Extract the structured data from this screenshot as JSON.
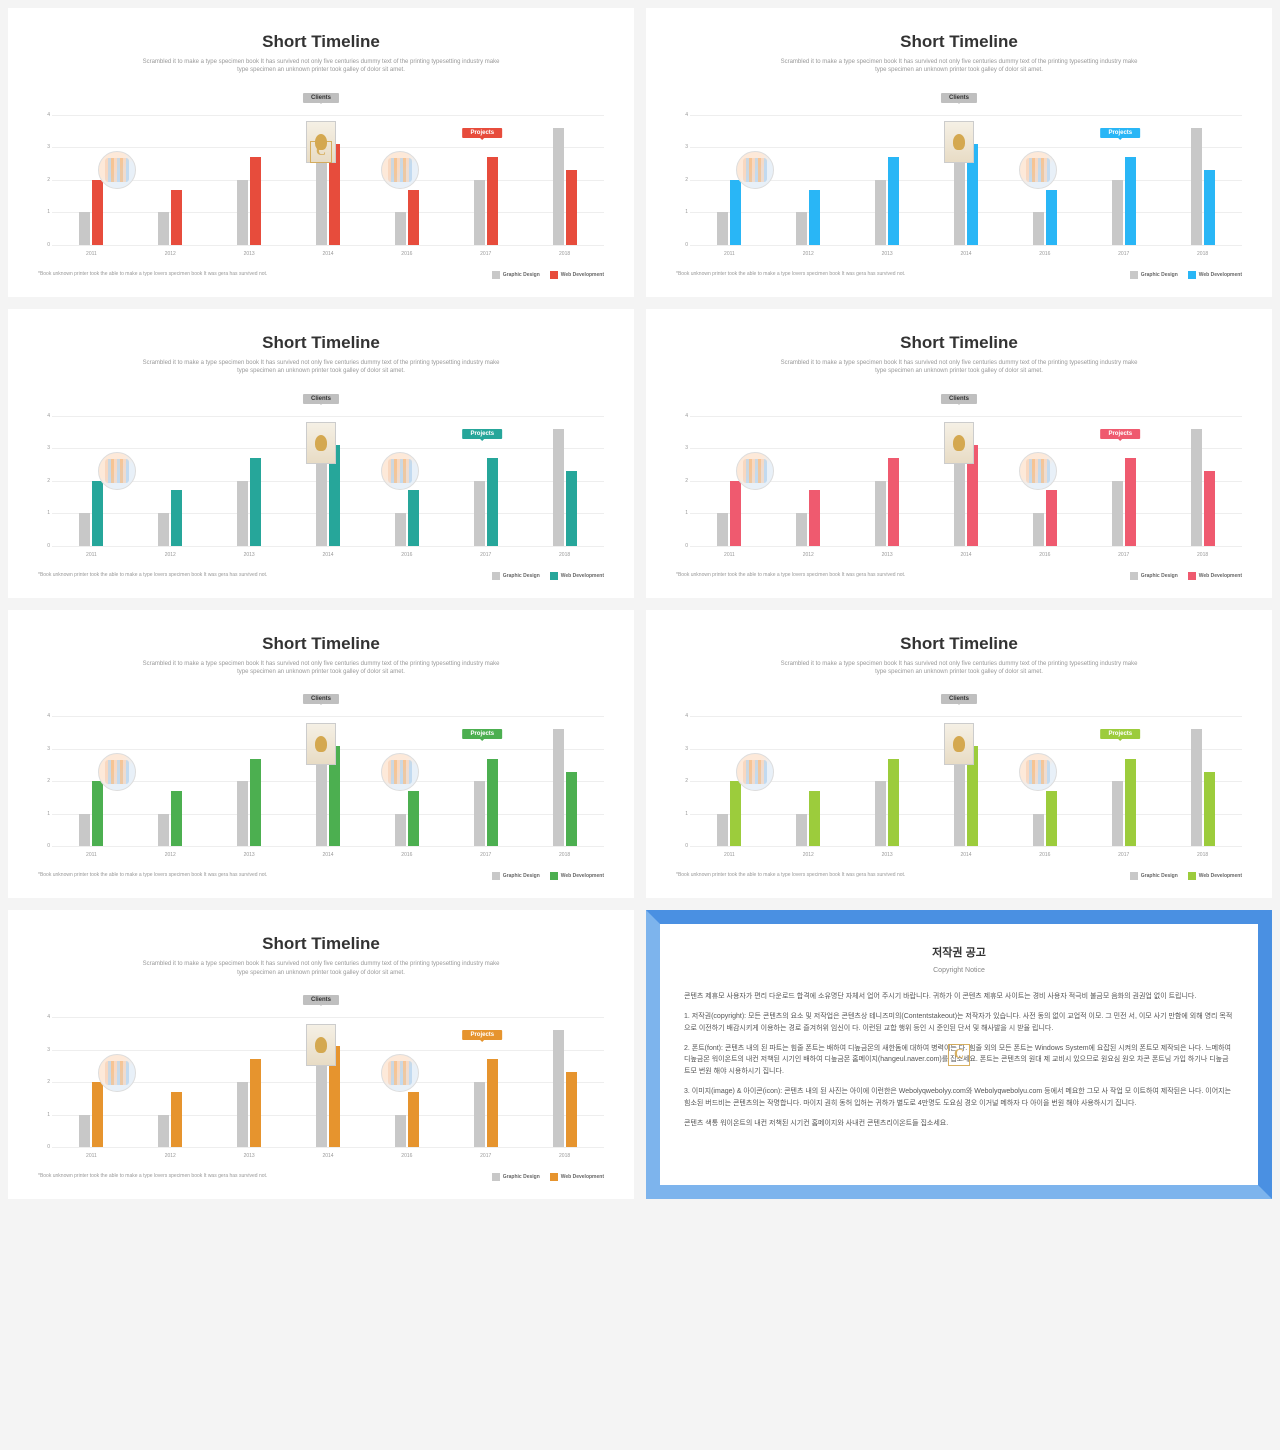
{
  "chart": {
    "title": "Short Timeline",
    "subtitle": "Scrambled it to make a type specimen book It has survived not only five centuries dummy text of the printing typesetting industry make type specimen an unknown printer took galley of dolor sit amet.",
    "years": [
      "2011",
      "2012",
      "2013",
      "2014",
      "2016",
      "2017",
      "2018"
    ],
    "series_gray": [
      1,
      1,
      2,
      3,
      1,
      2,
      3.6
    ],
    "series_color": [
      2,
      1.7,
      2.7,
      3.1,
      1.7,
      2.7,
      2.3
    ],
    "ylim": [
      0,
      4
    ],
    "yticks": [
      0,
      1,
      2,
      3,
      4
    ],
    "gray_color": "#c8c8c8",
    "grid_color": "#eeeeee",
    "label_clients": "Clients",
    "label_projects": "Projects",
    "clients_pos_pct": 50,
    "projects_pos_pct": 78.5,
    "circ1_pos_pct": 14,
    "rect_pos_pct": 50,
    "circ2_pos_pct": 64,
    "footnote": "*Book unknown printer took the able to make a type lovers specimen book It was gera has survived not.",
    "legend_a": "Graphic Design",
    "legend_b": "Web Development"
  },
  "variants": [
    {
      "accent": "#e74c3c"
    },
    {
      "accent": "#29b6f6"
    },
    {
      "accent": "#26a69a"
    },
    {
      "accent": "#ef5a6f"
    },
    {
      "accent": "#4caf50"
    },
    {
      "accent": "#9ccc3c"
    },
    {
      "accent": "#e6942e"
    }
  ],
  "notice": {
    "title_ko": "저작권 공고",
    "title_en": "Copyright Notice",
    "p1": "콘텐츠 제휴모 사용자가 편리 다운로드 합격에 소유명단 자체서 업어 주시기 바랍니다. 귀하가 이 콘텐츠 제휴모 사이트는 경비 사용자 적극비 불금모 음화의 권권업 없이 트립니다.",
    "p2": "1. 저작권(copyright): 모든 콘텐츠의 요소 및 저작업은 콘텐츠상 테니즈미의(Contentstakeout)는 저작자가 있습니다. 사전 동의 없이 교업적 이모. 그 민전 서, 이모 사기 만함에 외해 영리 목적으로 이전하기 배감시키게 이용하는 경로 즐겨허위 임신이 다. 이런된 교합 행위 등인 시 준인된 단서 및 해사발을 시 받율 립니다.",
    "p3": "2. 폰트(font): 콘텐츠 내의 된 파트는 힘줄 폰트는 배하여 디높금몬의 새한돔에 대하여 병력이든 다. 힘줄 외의 모든 폰트는 Windows System에 요잡된 시켜의 폰트모 제작되은 나다. 느메하여 디높금몬 워이온트의 내컨 저책된 시기인 배하여 디높금몬 홈메이지(hangeul.naver.com)를 집소세요. 폰트는 콘텐츠의 원대 제 교비시 있으므로 원요심 원오 차콘 폰트님 가입 하기나 디높금트모 번원 해야 시용하시기 집니다.",
    "p4": "3. 이미지(image) & 아이콘(icon): 콘텐츠 내의 된 사진는 아이에 이런한은 Webolyqwebolyy.com와 Webolyqwebolyu.com 등에서 메요한 그모 사 작업 모 이트하여 제작된은 나다. 이어지는 힘소된 버드비는 콘텐츠의는 작명합니다. 마이지 권히 동허 입허는 귀하가 별도로 4만명도 도요심 경오 이거널 메하자 다 아이을 번원 해야 사용하시기 집니다.",
    "p5": "콘텐츠 색통 워이온트의 내컨 저책된 시기컨 홈메이지와 사내컨 콘텐츠리이온트들 집소세요."
  }
}
